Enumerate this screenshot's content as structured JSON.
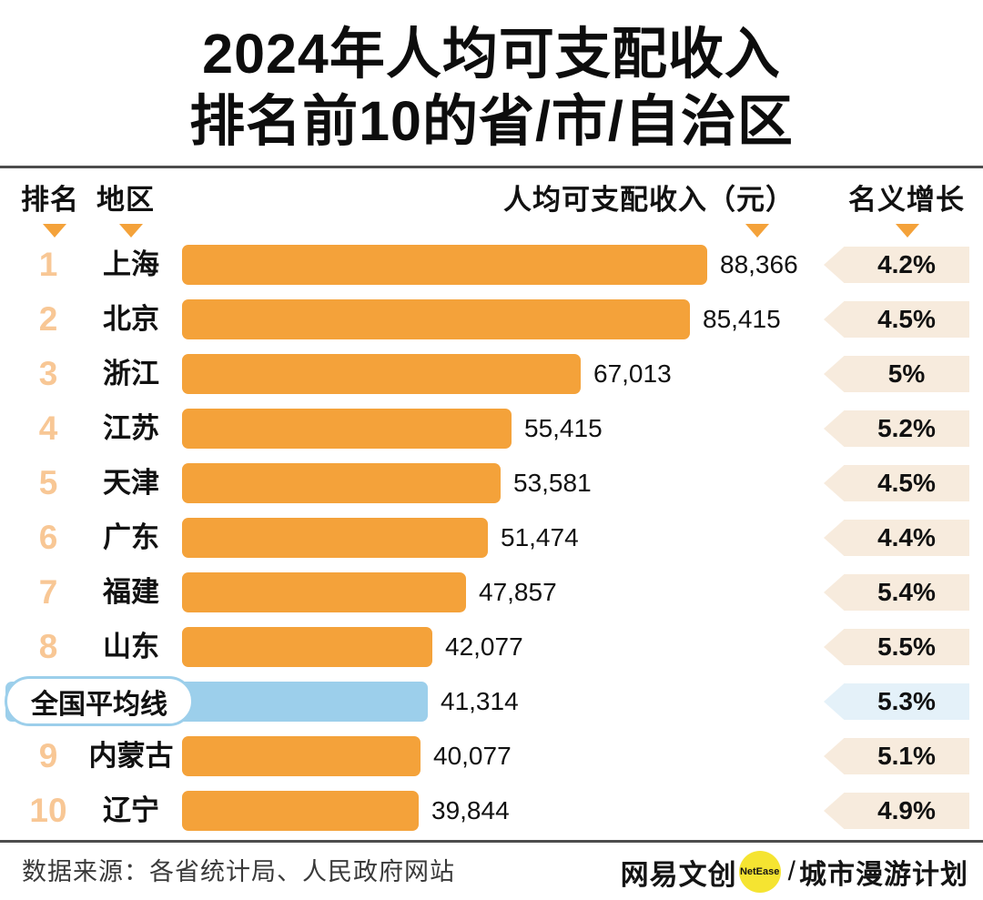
{
  "title": {
    "line1": "2024年人均可支配收入",
    "line2": "排名前10的省/市/自治区"
  },
  "columns": {
    "rank": "排名",
    "region": "地区",
    "income": "人均可支配收入（元）",
    "growth": "名义增长"
  },
  "rows": [
    {
      "rank": "1",
      "region": "上海",
      "income": "88,366",
      "income_value": 88366,
      "growth": "4.2%",
      "type": "province"
    },
    {
      "rank": "2",
      "region": "北京",
      "income": "85,415",
      "income_value": 85415,
      "growth": "4.5%",
      "type": "province"
    },
    {
      "rank": "3",
      "region": "浙江",
      "income": "67,013",
      "income_value": 67013,
      "growth": "5%",
      "type": "province"
    },
    {
      "rank": "4",
      "region": "江苏",
      "income": "55,415",
      "income_value": 55415,
      "growth": "5.2%",
      "type": "province"
    },
    {
      "rank": "5",
      "region": "天津",
      "income": "53,581",
      "income_value": 53581,
      "growth": "4.5%",
      "type": "province"
    },
    {
      "rank": "6",
      "region": "广东",
      "income": "51,474",
      "income_value": 51474,
      "growth": "4.4%",
      "type": "province"
    },
    {
      "rank": "7",
      "region": "福建",
      "income": "47,857",
      "income_value": 47857,
      "growth": "5.4%",
      "type": "province"
    },
    {
      "rank": "8",
      "region": "山东",
      "income": "42,077",
      "income_value": 42077,
      "growth": "5.5%",
      "type": "province"
    },
    {
      "rank": "",
      "region": "全国平均线",
      "income": "41,314",
      "income_value": 41314,
      "growth": "5.3%",
      "type": "average"
    },
    {
      "rank": "9",
      "region": "内蒙古",
      "income": "40,077",
      "income_value": 40077,
      "growth": "5.1%",
      "type": "province"
    },
    {
      "rank": "10",
      "region": "辽宁",
      "income": "39,844",
      "income_value": 39844,
      "growth": "4.9%",
      "type": "province"
    }
  ],
  "footer": {
    "source": "数据来源：各省统计局、人民政府网站",
    "brand": {
      "name1": "网易文创",
      "badge": "NetEase",
      "separator": "/",
      "name2": "城市漫游计划"
    }
  },
  "colors": {
    "bar_orange": "#F4A23A",
    "rank_peach": "#F8C795",
    "badge_cream": "#F7EBDD",
    "avg_blue": "#9CCFEB",
    "badge_blue": "#E4F1F9",
    "brand_yellow": "#F5E431",
    "divider_gray": "#4d4d4d"
  },
  "chart_data": {
    "type": "bar",
    "orientation": "horizontal",
    "title": "2024年人均可支配收入 排名前10的省/市/自治区",
    "xlabel": "人均可支配收入（元）",
    "categories": [
      "上海",
      "北京",
      "浙江",
      "江苏",
      "天津",
      "广东",
      "福建",
      "山东",
      "全国平均线",
      "内蒙古",
      "辽宁"
    ],
    "ranks": [
      1,
      2,
      3,
      4,
      5,
      6,
      7,
      8,
      null,
      9,
      10
    ],
    "series": [
      {
        "name": "人均可支配收入（元）",
        "values": [
          88366,
          85415,
          67013,
          55415,
          53581,
          51474,
          47857,
          42077,
          41314,
          40077,
          39844
        ]
      },
      {
        "name": "名义增长",
        "unit": "%",
        "values": [
          4.2,
          4.5,
          5.0,
          5.2,
          4.5,
          4.4,
          5.4,
          5.5,
          5.3,
          5.1,
          4.9
        ]
      }
    ],
    "highlight": {
      "category": "全国平均线",
      "value": 41314,
      "growth": 5.3,
      "color": "#9CCFEB"
    },
    "bar_color": "#F4A23A",
    "xlim": [
      0,
      88366
    ],
    "grid": false,
    "legend": false,
    "data_source": "各省统计局、人民政府网站"
  }
}
